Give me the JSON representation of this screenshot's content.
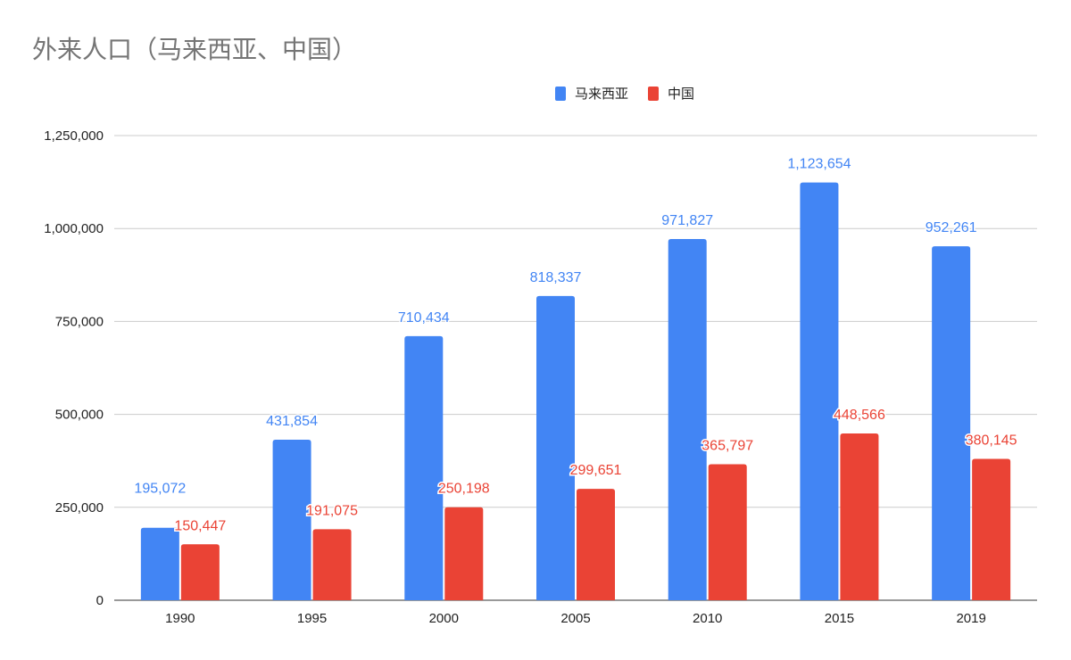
{
  "chart_data": {
    "type": "bar",
    "title": "外来人口（马来西亚、中国）",
    "xlabel": "",
    "ylabel": "",
    "categories": [
      "1990",
      "1995",
      "2000",
      "2005",
      "2010",
      "2015",
      "2019"
    ],
    "series": [
      {
        "name": "马来西亚",
        "color": "#4285f4",
        "values": [
          195072,
          431854,
          710434,
          818337,
          971827,
          1123654,
          952261
        ],
        "labels": [
          "195,072",
          "431,854",
          "710,434",
          "818,337",
          "971,827",
          "1,123,654",
          "952,261"
        ]
      },
      {
        "name": "中国",
        "color": "#ea4335",
        "values": [
          150447,
          191075,
          250198,
          299651,
          365797,
          448566,
          380145
        ],
        "labels": [
          "150,447",
          "191,075",
          "250,198",
          "299,651",
          "365,797",
          "448,566",
          "380,145"
        ]
      }
    ],
    "ylim": [
      0,
      1250000
    ],
    "yticks": [
      0,
      250000,
      500000,
      750000,
      1000000,
      1250000
    ],
    "ytick_labels": [
      "0",
      "250,000",
      "500,000",
      "750,000",
      "1,000,000",
      "1,250,000"
    ],
    "grid": true,
    "legend_position": "top"
  }
}
